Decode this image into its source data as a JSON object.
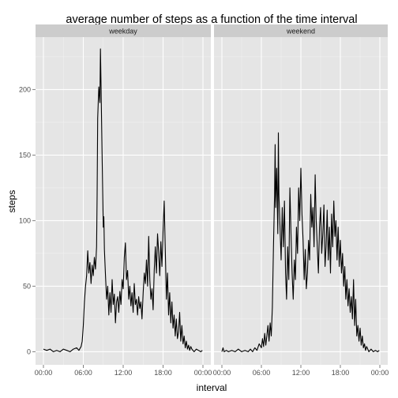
{
  "chart_data": {
    "type": "line",
    "title": "average number of steps as a function of the time interval",
    "xlabel": "interval",
    "ylabel": "steps",
    "x_unit": "HH:MM",
    "xlim": [
      "00:00",
      "24:00"
    ],
    "ylim": [
      -10,
      240
    ],
    "x_ticks": [
      "00:00",
      "06:00",
      "12:00",
      "18:00",
      "00:00"
    ],
    "y_ticks": [
      0,
      50,
      100,
      150,
      200
    ],
    "grid": true,
    "background": "#e5e5e5",
    "strip_color": "#cccccc",
    "line_color": "#000000",
    "facets": [
      {
        "name": "weekday",
        "points": [
          [
            "00:00",
            2
          ],
          [
            "00:30",
            1
          ],
          [
            "01:00",
            2
          ],
          [
            "01:30",
            0
          ],
          [
            "02:00",
            1
          ],
          [
            "02:30",
            0
          ],
          [
            "03:00",
            2
          ],
          [
            "03:30",
            1
          ],
          [
            "04:00",
            0
          ],
          [
            "04:30",
            2
          ],
          [
            "05:00",
            3
          ],
          [
            "05:20",
            1
          ],
          [
            "05:40",
            4
          ],
          [
            "05:50",
            8
          ],
          [
            "06:00",
            20
          ],
          [
            "06:10",
            38
          ],
          [
            "06:20",
            50
          ],
          [
            "06:30",
            58
          ],
          [
            "06:40",
            77
          ],
          [
            "06:50",
            60
          ],
          [
            "07:00",
            68
          ],
          [
            "07:10",
            52
          ],
          [
            "07:20",
            66
          ],
          [
            "07:30",
            58
          ],
          [
            "07:40",
            72
          ],
          [
            "07:50",
            63
          ],
          [
            "08:00",
            80
          ],
          [
            "08:05",
            120
          ],
          [
            "08:10",
            178
          ],
          [
            "08:20",
            202
          ],
          [
            "08:30",
            190
          ],
          [
            "08:35",
            231
          ],
          [
            "08:40",
            205
          ],
          [
            "08:50",
            150
          ],
          [
            "09:00",
            95
          ],
          [
            "09:05",
            103
          ],
          [
            "09:10",
            78
          ],
          [
            "09:20",
            58
          ],
          [
            "09:30",
            40
          ],
          [
            "09:40",
            50
          ],
          [
            "09:50",
            28
          ],
          [
            "10:00",
            45
          ],
          [
            "10:10",
            30
          ],
          [
            "10:20",
            55
          ],
          [
            "10:30",
            36
          ],
          [
            "10:40",
            44
          ],
          [
            "10:50",
            22
          ],
          [
            "11:00",
            38
          ],
          [
            "11:10",
            42
          ],
          [
            "11:20",
            30
          ],
          [
            "11:30",
            46
          ],
          [
            "11:40",
            36
          ],
          [
            "11:50",
            55
          ],
          [
            "12:00",
            48
          ],
          [
            "12:10",
            72
          ],
          [
            "12:20",
            83
          ],
          [
            "12:30",
            55
          ],
          [
            "12:40",
            62
          ],
          [
            "12:50",
            40
          ],
          [
            "13:00",
            50
          ],
          [
            "13:10",
            35
          ],
          [
            "13:20",
            45
          ],
          [
            "13:30",
            30
          ],
          [
            "13:40",
            52
          ],
          [
            "13:50",
            36
          ],
          [
            "14:00",
            40
          ],
          [
            "14:10",
            28
          ],
          [
            "14:20",
            42
          ],
          [
            "14:30",
            33
          ],
          [
            "14:40",
            38
          ],
          [
            "14:50",
            25
          ],
          [
            "15:00",
            45
          ],
          [
            "15:10",
            60
          ],
          [
            "15:20",
            52
          ],
          [
            "15:30",
            70
          ],
          [
            "15:40",
            50
          ],
          [
            "15:50",
            88
          ],
          [
            "16:00",
            55
          ],
          [
            "16:10",
            40
          ],
          [
            "16:20",
            48
          ],
          [
            "16:30",
            32
          ],
          [
            "16:40",
            62
          ],
          [
            "16:50",
            80
          ],
          [
            "17:00",
            60
          ],
          [
            "17:10",
            90
          ],
          [
            "17:20",
            76
          ],
          [
            "17:30",
            58
          ],
          [
            "17:40",
            84
          ],
          [
            "17:50",
            65
          ],
          [
            "18:00",
            92
          ],
          [
            "18:10",
            115
          ],
          [
            "18:20",
            78
          ],
          [
            "18:30",
            40
          ],
          [
            "18:40",
            60
          ],
          [
            "18:50",
            28
          ],
          [
            "19:00",
            45
          ],
          [
            "19:10",
            22
          ],
          [
            "19:20",
            38
          ],
          [
            "19:30",
            18
          ],
          [
            "19:40",
            28
          ],
          [
            "19:50",
            12
          ],
          [
            "20:00",
            25
          ],
          [
            "20:10",
            10
          ],
          [
            "20:20",
            15
          ],
          [
            "20:30",
            30
          ],
          [
            "20:40",
            8
          ],
          [
            "20:50",
            20
          ],
          [
            "21:00",
            6
          ],
          [
            "21:10",
            12
          ],
          [
            "21:20",
            3
          ],
          [
            "21:30",
            8
          ],
          [
            "21:40",
            2
          ],
          [
            "21:50",
            5
          ],
          [
            "22:00",
            1
          ],
          [
            "22:10",
            4
          ],
          [
            "22:20",
            2
          ],
          [
            "22:40",
            0
          ],
          [
            "23:00",
            2
          ],
          [
            "23:20",
            1
          ],
          [
            "23:40",
            0
          ],
          [
            "23:55",
            1
          ]
        ]
      },
      {
        "name": "weekend",
        "points": [
          [
            "00:00",
            0
          ],
          [
            "00:10",
            3
          ],
          [
            "00:20",
            0
          ],
          [
            "00:40",
            1
          ],
          [
            "01:00",
            0
          ],
          [
            "01:30",
            1
          ],
          [
            "02:00",
            0
          ],
          [
            "02:30",
            2
          ],
          [
            "03:00",
            0
          ],
          [
            "03:30",
            1
          ],
          [
            "04:00",
            0
          ],
          [
            "04:20",
            2
          ],
          [
            "04:40",
            0
          ],
          [
            "05:00",
            3
          ],
          [
            "05:20",
            1
          ],
          [
            "05:40",
            6
          ],
          [
            "06:00",
            3
          ],
          [
            "06:10",
            10
          ],
          [
            "06:20",
            4
          ],
          [
            "06:30",
            14
          ],
          [
            "06:40",
            5
          ],
          [
            "06:50",
            12
          ],
          [
            "07:00",
            20
          ],
          [
            "07:10",
            8
          ],
          [
            "07:20",
            22
          ],
          [
            "07:30",
            12
          ],
          [
            "07:40",
            34
          ],
          [
            "07:50",
            80
          ],
          [
            "08:00",
            120
          ],
          [
            "08:05",
            158
          ],
          [
            "08:10",
            110
          ],
          [
            "08:20",
            140
          ],
          [
            "08:30",
            90
          ],
          [
            "08:35",
            167
          ],
          [
            "08:40",
            120
          ],
          [
            "08:50",
            95
          ],
          [
            "09:00",
            70
          ],
          [
            "09:10",
            110
          ],
          [
            "09:20",
            80
          ],
          [
            "09:30",
            115
          ],
          [
            "09:40",
            60
          ],
          [
            "09:50",
            40
          ],
          [
            "10:00",
            80
          ],
          [
            "10:10",
            55
          ],
          [
            "10:20",
            125
          ],
          [
            "10:30",
            90
          ],
          [
            "10:40",
            60
          ],
          [
            "10:50",
            40
          ],
          [
            "11:00",
            70
          ],
          [
            "11:10",
            55
          ],
          [
            "11:20",
            95
          ],
          [
            "11:30",
            75
          ],
          [
            "11:40",
            125
          ],
          [
            "11:50",
            100
          ],
          [
            "12:00",
            140
          ],
          [
            "12:10",
            105
          ],
          [
            "12:20",
            85
          ],
          [
            "12:30",
            55
          ],
          [
            "12:40",
            78
          ],
          [
            "12:50",
            48
          ],
          [
            "13:00",
            60
          ],
          [
            "13:10",
            85
          ],
          [
            "13:20",
            70
          ],
          [
            "13:30",
            120
          ],
          [
            "13:40",
            95
          ],
          [
            "13:50",
            110
          ],
          [
            "14:00",
            80
          ],
          [
            "14:10",
            135
          ],
          [
            "14:20",
            100
          ],
          [
            "14:30",
            80
          ],
          [
            "14:40",
            60
          ],
          [
            "14:50",
            95
          ],
          [
            "15:00",
            110
          ],
          [
            "15:10",
            75
          ],
          [
            "15:20",
            90
          ],
          [
            "15:30",
            112
          ],
          [
            "15:40",
            65
          ],
          [
            "15:50",
            80
          ],
          [
            "16:00",
            108
          ],
          [
            "16:10",
            70
          ],
          [
            "16:20",
            95
          ],
          [
            "16:30",
            60
          ],
          [
            "16:40",
            105
          ],
          [
            "16:50",
            80
          ],
          [
            "17:00",
            115
          ],
          [
            "17:10",
            88
          ],
          [
            "17:20",
            100
          ],
          [
            "17:30",
            70
          ],
          [
            "17:40",
            95
          ],
          [
            "17:50",
            65
          ],
          [
            "18:00",
            85
          ],
          [
            "18:10",
            60
          ],
          [
            "18:20",
            75
          ],
          [
            "18:30",
            50
          ],
          [
            "18:40",
            65
          ],
          [
            "18:50",
            40
          ],
          [
            "19:00",
            55
          ],
          [
            "19:10",
            35
          ],
          [
            "19:20",
            48
          ],
          [
            "19:30",
            30
          ],
          [
            "19:40",
            42
          ],
          [
            "19:50",
            25
          ],
          [
            "20:00",
            55
          ],
          [
            "20:10",
            20
          ],
          [
            "20:20",
            40
          ],
          [
            "20:30",
            12
          ],
          [
            "20:40",
            20
          ],
          [
            "20:50",
            8
          ],
          [
            "21:00",
            18
          ],
          [
            "21:10",
            5
          ],
          [
            "21:20",
            12
          ],
          [
            "21:30",
            3
          ],
          [
            "21:40",
            6
          ],
          [
            "21:50",
            1
          ],
          [
            "22:00",
            4
          ],
          [
            "22:20",
            0
          ],
          [
            "22:40",
            2
          ],
          [
            "23:00",
            0
          ],
          [
            "23:20",
            1
          ],
          [
            "23:40",
            0
          ],
          [
            "23:55",
            1
          ]
        ]
      }
    ]
  }
}
